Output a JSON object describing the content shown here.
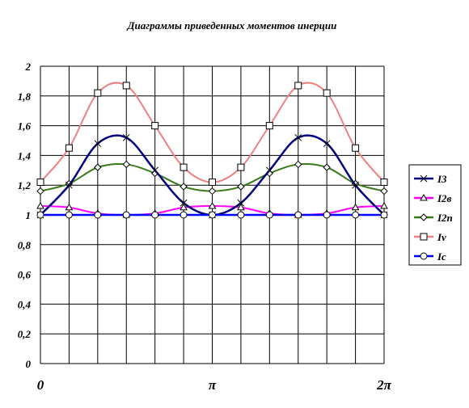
{
  "chart_data": {
    "type": "line",
    "title": "Диаграммы приведенных моментов инерции",
    "xlabel": "",
    "ylabel": "",
    "xlim": [
      0,
      12
    ],
    "ylim": [
      0,
      2
    ],
    "yticks": [
      "0",
      "0,2",
      "0,4",
      "0,6",
      "0,8",
      "1",
      "1,2",
      "1,4",
      "1,6",
      "1,8",
      "2"
    ],
    "xticks": [
      {
        "pos": 0,
        "label": "0"
      },
      {
        "pos": 6,
        "label": "π"
      },
      {
        "pos": 12,
        "label": "2π"
      }
    ],
    "grid": true,
    "legend_position": "right",
    "x": [
      0,
      1,
      2,
      3,
      4,
      5,
      6,
      7,
      8,
      9,
      10,
      11,
      12
    ],
    "series": [
      {
        "name": "I3",
        "color": "#000080",
        "marker": "x",
        "values": [
          1.0,
          1.2,
          1.48,
          1.52,
          1.3,
          1.08,
          1.0,
          1.08,
          1.3,
          1.52,
          1.48,
          1.2,
          1.0
        ]
      },
      {
        "name": "I2в",
        "color": "#ff00ff",
        "marker": "triangle",
        "values": [
          1.06,
          1.05,
          1.01,
          1.0,
          1.01,
          1.05,
          1.06,
          1.05,
          1.01,
          1.0,
          1.01,
          1.05,
          1.06
        ]
      },
      {
        "name": "I2п",
        "color": "#3a7a1a",
        "marker": "diamond",
        "values": [
          1.16,
          1.21,
          1.32,
          1.34,
          1.28,
          1.19,
          1.16,
          1.19,
          1.28,
          1.34,
          1.32,
          1.21,
          1.16
        ]
      },
      {
        "name": "Iv",
        "color": "#f08080",
        "marker": "square",
        "values": [
          1.22,
          1.45,
          1.82,
          1.87,
          1.6,
          1.32,
          1.22,
          1.32,
          1.6,
          1.87,
          1.82,
          1.45,
          1.22
        ]
      },
      {
        "name": "Ic",
        "color": "#0000ff",
        "marker": "circle",
        "values": [
          1.0,
          1.0,
          1.0,
          1.0,
          1.0,
          1.0,
          1.0,
          1.0,
          1.0,
          1.0,
          1.0,
          1.0,
          1.0
        ]
      }
    ]
  }
}
